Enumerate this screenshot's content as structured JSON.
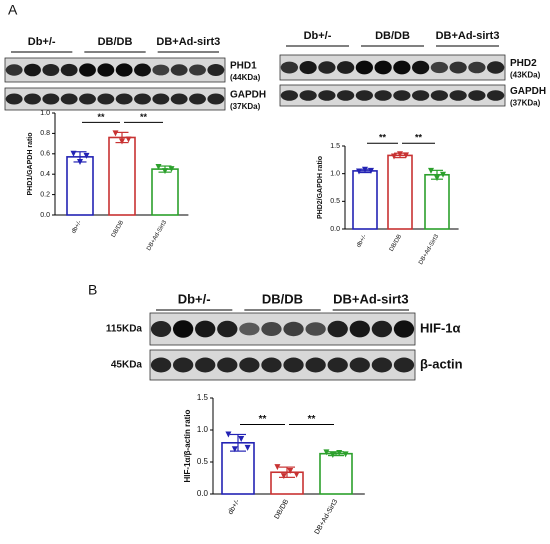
{
  "panel_labels": [
    "A",
    "B"
  ],
  "blot_phd1": {
    "groups": [
      "Db+/-",
      "DB/DB",
      "DB+Ad-sirt3"
    ],
    "rows": [
      {
        "name": "PHD1",
        "size": "(44KDa)"
      },
      {
        "name": "GAPDH",
        "size": "(37KDa)"
      }
    ]
  },
  "blot_phd2": {
    "groups": [
      "Db+/-",
      "DB/DB",
      "DB+Ad-sirt3"
    ],
    "rows": [
      {
        "name": "PHD2",
        "size": "(43KDa)"
      },
      {
        "name": "GAPDH",
        "size": "(37KDa)"
      }
    ]
  },
  "blot_hif": {
    "groups": [
      "Db+/-",
      "DB/DB",
      "DB+Ad-sirt3"
    ],
    "rows": [
      {
        "name": "HIF-1α",
        "size": "115KDa"
      },
      {
        "name": "β-actin",
        "size": "45KDa"
      }
    ]
  },
  "chart_data": [
    {
      "type": "bar",
      "y_label": "PHD1/GAPDH ratio",
      "categories": [
        "db+/-",
        "DB/DB",
        "DB+Ad-Sirt3"
      ],
      "values": [
        0.57,
        0.76,
        0.45
      ],
      "errors": [
        0.05,
        0.05,
        0.03
      ],
      "points": [
        [
          0.6,
          0.52,
          0.58
        ],
        [
          0.8,
          0.72,
          0.74
        ],
        [
          0.47,
          0.43,
          0.45
        ]
      ],
      "colors": [
        "#2323b4",
        "#c83232",
        "#2ca02c"
      ],
      "ylim": [
        0,
        1.0
      ],
      "yticks": [
        {
          "value": 0,
          "label": "0.0"
        },
        0.2,
        0.4,
        0.6,
        0.8,
        {
          "value": 1.0,
          "label": "1.0"
        }
      ],
      "annotations": [
        {
          "text": "**",
          "from": 0,
          "to": 1
        },
        {
          "text": "**",
          "from": 1,
          "to": 2
        }
      ]
    },
    {
      "type": "bar",
      "y_label": "PHD2/GAPDH ratio",
      "categories": [
        "db+/-",
        "DB/DB",
        "DB+Ad-Sirt3"
      ],
      "values": [
        1.05,
        1.33,
        0.98
      ],
      "errors": [
        0.03,
        0.04,
        0.08
      ],
      "points": [
        [
          1.04,
          1.07,
          1.05
        ],
        [
          1.31,
          1.35,
          1.33
        ],
        [
          1.05,
          0.92,
          0.98
        ]
      ],
      "colors": [
        "#2323b4",
        "#c83232",
        "#2ca02c"
      ],
      "ylim": [
        0,
        1.5
      ],
      "yticks": [
        {
          "value": 0,
          "label": "0.0"
        },
        0.5,
        {
          "value": 1.0,
          "label": "1.0"
        },
        1.5
      ],
      "annotations": [
        {
          "text": "**",
          "from": 0,
          "to": 1
        },
        {
          "text": "**",
          "from": 1,
          "to": 2
        }
      ]
    },
    {
      "type": "bar",
      "y_label": "HIF-1α/β-actin ratio",
      "categories": [
        "db+/-",
        "DB/DB",
        "DB+Ad-Sirt3"
      ],
      "values": [
        0.8,
        0.34,
        0.63
      ],
      "errors": [
        0.13,
        0.08,
        0.03
      ],
      "points": [
        [
          0.93,
          0.7,
          0.86,
          0.72
        ],
        [
          0.42,
          0.28,
          0.36,
          0.3
        ],
        [
          0.65,
          0.61,
          0.64,
          0.62
        ]
      ],
      "colors": [
        "#2323b4",
        "#c83232",
        "#2ca02c"
      ],
      "ylim": [
        0,
        1.5
      ],
      "yticks": [
        {
          "value": 0,
          "label": "0.0"
        },
        0.5,
        {
          "value": 1.0,
          "label": "1.0"
        },
        1.5
      ],
      "annotations": [
        {
          "text": "**",
          "from": 0,
          "to": 1
        },
        {
          "text": "**",
          "from": 1,
          "to": 2
        }
      ]
    }
  ]
}
